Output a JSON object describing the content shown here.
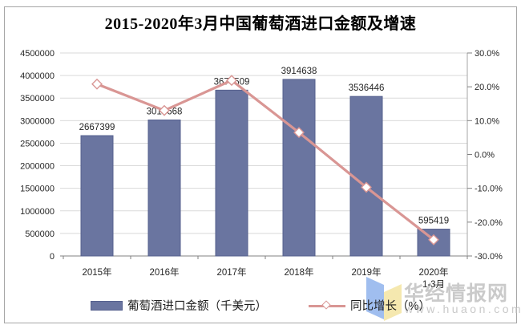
{
  "title": "2015-2020年3月中国葡萄酒进口金额及增速",
  "legend": {
    "bar_label": "葡萄酒进口金额（千美元）",
    "line_label": "同比增长（%）"
  },
  "watermark": {
    "brand": "华经情报网",
    "url": "www.huaon.com"
  },
  "colors": {
    "bar_fill": "#6A75A0",
    "bar_border": "#56618E",
    "line": "#D99694",
    "marker_fill": "#FFFFFF",
    "gridline": "#D9D9D9",
    "axis": "#808080",
    "right_axis_line": "#A6A6A6",
    "label_text": "#262626"
  },
  "chart_data": {
    "type": "bar",
    "subtype": "bar-with-line-overlay",
    "title": "2015-2020年3月中国葡萄酒进口金额及增速",
    "categories": [
      "2015年",
      "2016年",
      "2017年",
      "2018年",
      "2019年",
      "2020年\n1-3月"
    ],
    "series": [
      {
        "name": "葡萄酒进口金额（千美元）",
        "type": "bar",
        "axis": "left",
        "values": [
          2667399,
          3014668,
          3675509,
          3914638,
          3536446,
          595419
        ],
        "data_labels": [
          "2667399",
          "3014668",
          "3675509",
          "3914638",
          "3536446",
          "595419"
        ],
        "color": "#6A75A0"
      },
      {
        "name": "同比增长（%）",
        "type": "line",
        "axis": "right",
        "values": [
          20.8,
          13.0,
          21.9,
          6.5,
          -9.7,
          -25.2
        ],
        "color": "#D99694",
        "marker": "open-diamond"
      }
    ],
    "left_axis": {
      "min": 0,
      "max": 4500000,
      "step": 500000,
      "tick_labels": [
        "0",
        "500000",
        "1000000",
        "1500000",
        "2000000",
        "2500000",
        "3000000",
        "3500000",
        "4000000",
        "4500000"
      ]
    },
    "right_axis": {
      "min": -30,
      "max": 30,
      "step": 10,
      "tick_labels": [
        "30.0%",
        "20.0%",
        "10.0%",
        "0.0%",
        "-10.0%",
        "-20.0%",
        "-30.0%"
      ]
    },
    "grid": "horizontal",
    "legend_position": "bottom"
  }
}
